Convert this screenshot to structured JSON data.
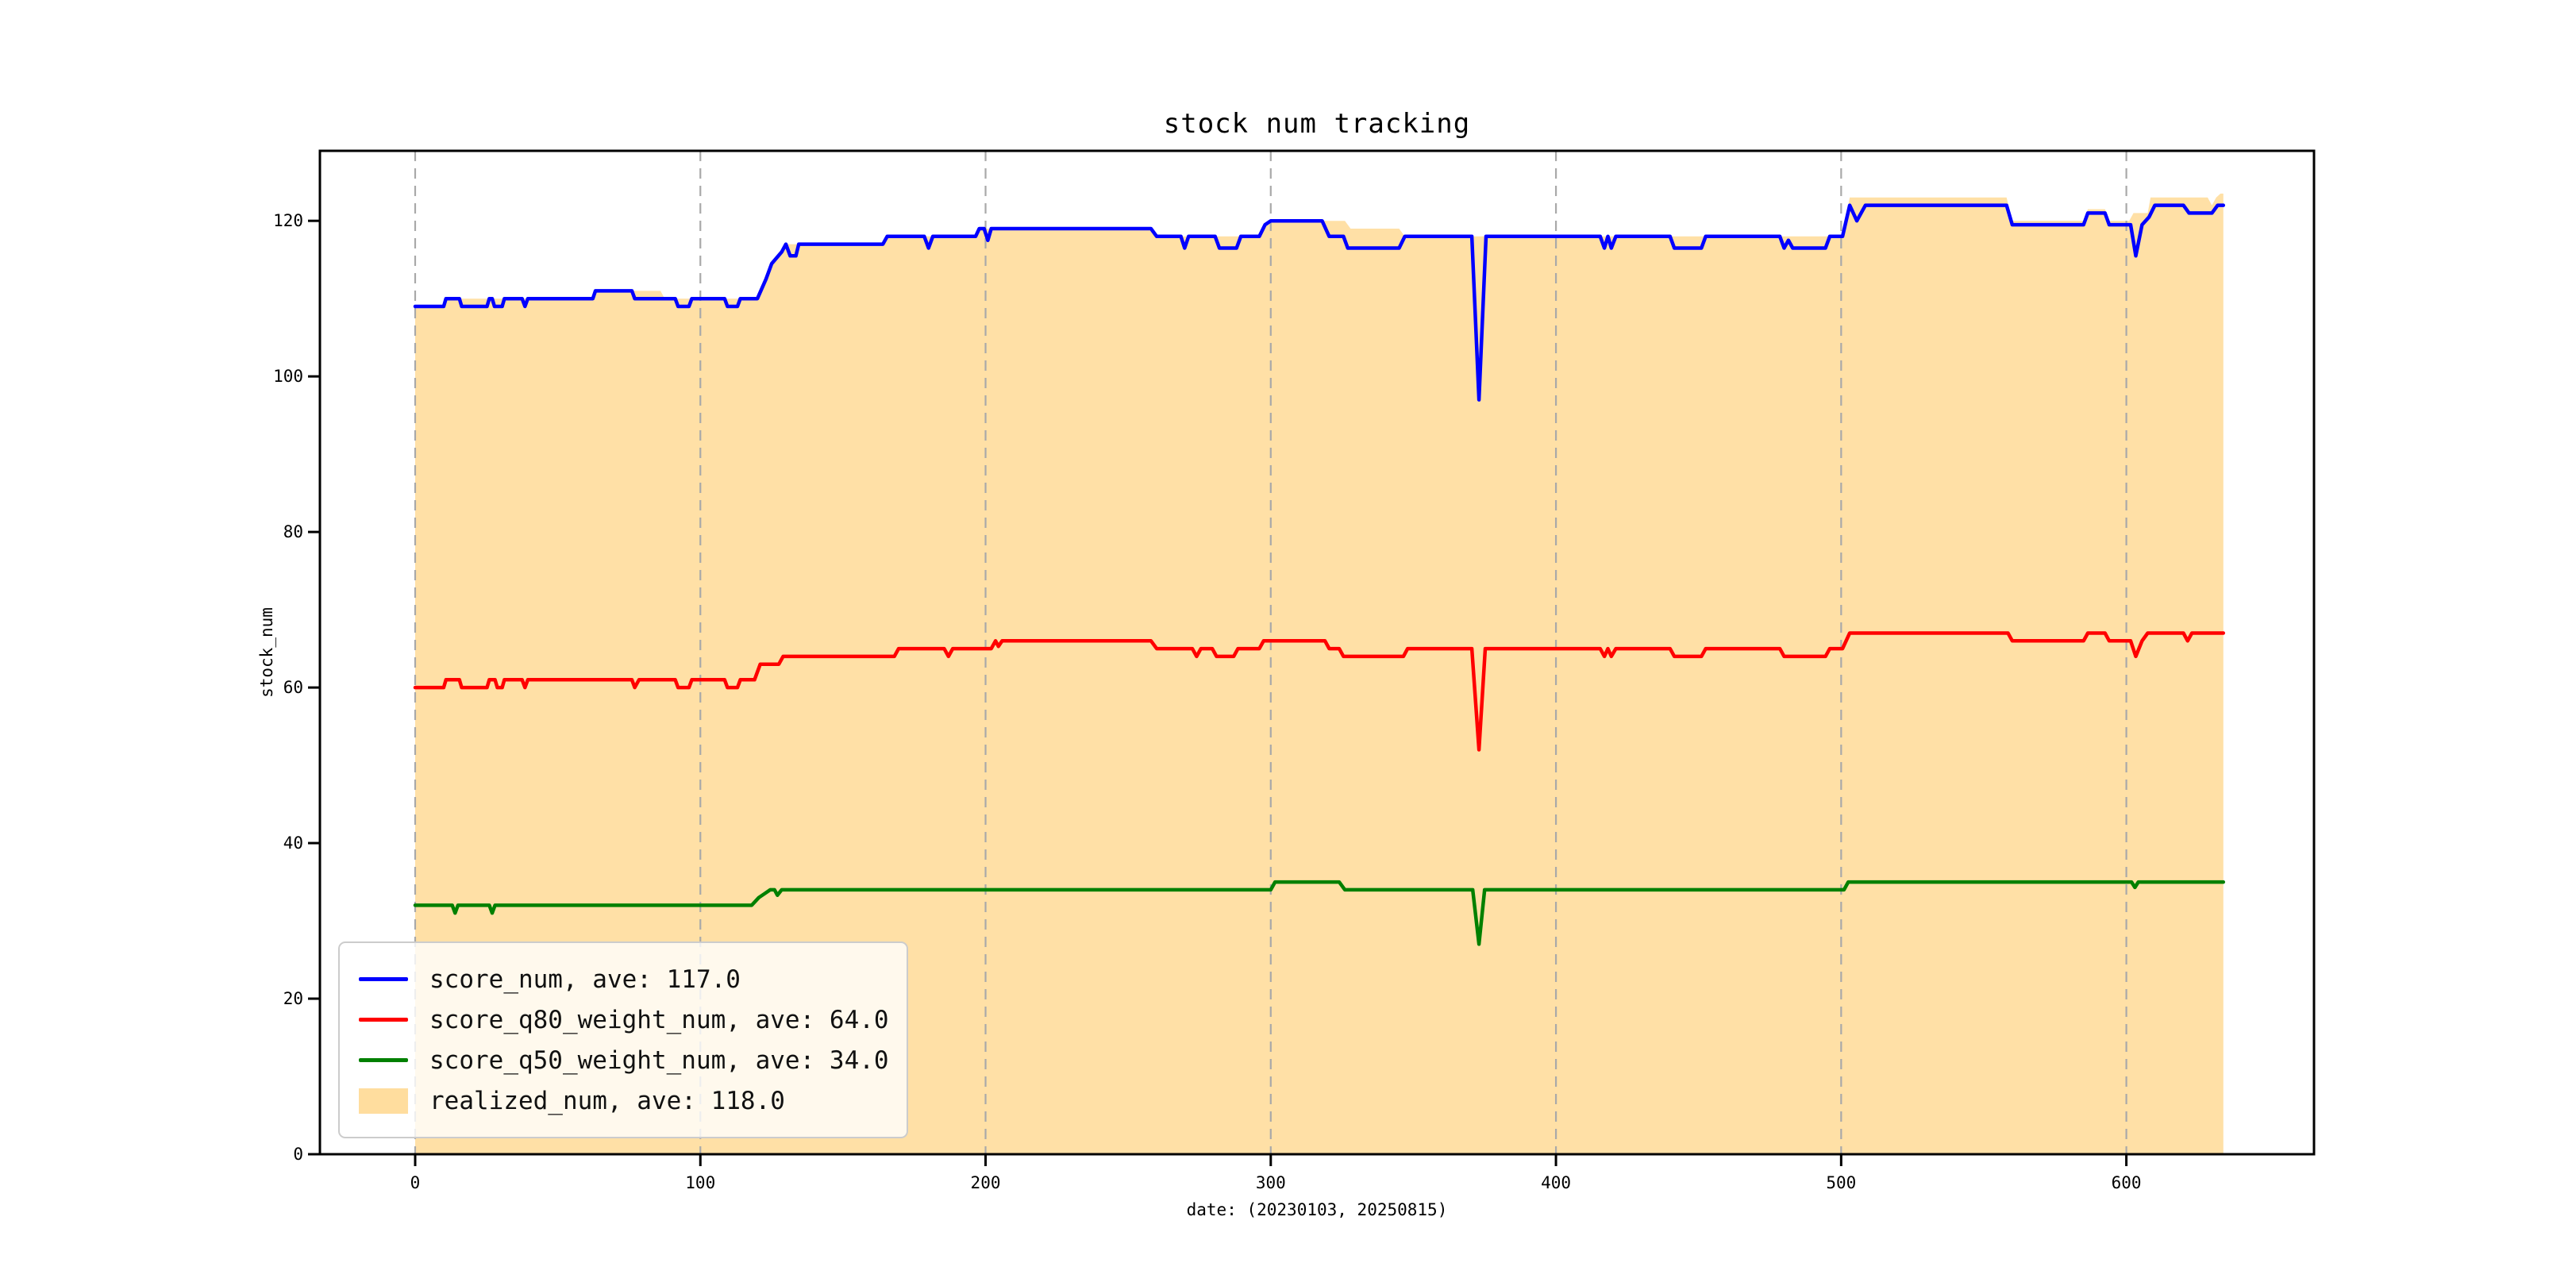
{
  "figure": {
    "title": "stock num tracking",
    "xlabel": "date: (20230103, 20250815)",
    "ylabel": "stock_num",
    "background": "#ffffff"
  },
  "axes": {
    "xlim": [
      -33.4,
      665.8
    ],
    "ylim": [
      0,
      129
    ],
    "x_ticks": [
      0,
      100,
      200,
      300,
      400,
      500,
      600
    ],
    "y_ticks": [
      0,
      20,
      40,
      60,
      80,
      100,
      120
    ],
    "grid_vertical": true,
    "grid_horizontal": false,
    "grid_color": "#a9a9a9",
    "spine_color": "#000000",
    "tick_label_color": "#000000"
  },
  "legend": {
    "position": "lower-left",
    "items": [
      {
        "label": "score_num, ave: 117.0",
        "color": "#0000ff",
        "swatch": "line"
      },
      {
        "label": "score_q80_weight_num, ave: 64.0",
        "color": "#ff0000",
        "swatch": "line"
      },
      {
        "label": "score_q50_weight_num, ave: 34.0",
        "color": "#008000",
        "swatch": "line"
      },
      {
        "label": "realized_num, ave: 118.0",
        "color": "rgba(255,165,0,0.38)",
        "swatch": "patch"
      }
    ]
  },
  "chart_data": {
    "type": "line",
    "title": "stock num tracking",
    "xlabel": "date: (20230103, 20250815)",
    "ylabel": "stock_num",
    "x_range": [
      0,
      634
    ],
    "fill_series": {
      "name": "realized_num",
      "average": 118.0,
      "color": "rgba(255,165,0,0.35)",
      "baseline": 0,
      "points": [
        [
          0,
          109
        ],
        [
          10,
          109
        ],
        [
          10.8,
          110
        ],
        [
          62.3,
          110
        ],
        [
          63.2,
          111
        ],
        [
          86,
          111
        ],
        [
          87.5,
          110
        ],
        [
          120,
          110
        ],
        [
          123,
          112.5
        ],
        [
          125,
          114.5
        ],
        [
          130,
          117
        ],
        [
          134.5,
          117
        ],
        [
          164,
          117
        ],
        [
          165.5,
          118
        ],
        [
          196.5,
          118
        ],
        [
          197.8,
          119
        ],
        [
          258,
          119
        ],
        [
          260,
          118
        ],
        [
          296,
          118
        ],
        [
          298,
          119.5
        ],
        [
          300,
          120
        ],
        [
          326,
          120
        ],
        [
          328,
          119
        ],
        [
          345,
          119
        ],
        [
          347,
          118
        ],
        [
          500.5,
          118
        ],
        [
          503,
          123
        ],
        [
          558,
          123
        ],
        [
          560,
          120
        ],
        [
          585,
          120
        ],
        [
          586.5,
          121.5
        ],
        [
          592.5,
          121.5
        ],
        [
          594,
          120
        ],
        [
          601,
          120
        ],
        [
          602.5,
          121
        ],
        [
          607.5,
          121
        ],
        [
          608.5,
          123
        ],
        [
          628.5,
          123
        ],
        [
          630,
          122
        ],
        [
          631.5,
          123
        ],
        [
          633,
          123.5
        ],
        [
          634,
          123.5
        ]
      ]
    },
    "series": [
      {
        "name": "score_num",
        "average": 117.0,
        "color": "#0000ff",
        "width": 4.5,
        "points": [
          [
            0,
            109
          ],
          [
            10,
            109
          ],
          [
            10.8,
            110
          ],
          [
            15.5,
            110
          ],
          [
            16.3,
            109
          ],
          [
            25.2,
            109
          ],
          [
            26,
            110
          ],
          [
            27,
            110
          ],
          [
            27.8,
            109
          ],
          [
            30.5,
            109
          ],
          [
            31.3,
            110
          ],
          [
            34.5,
            110
          ],
          [
            37.5,
            110
          ],
          [
            38.5,
            109
          ],
          [
            39.5,
            110
          ],
          [
            62.3,
            110
          ],
          [
            63.2,
            111
          ],
          [
            76,
            111
          ],
          [
            77,
            110
          ],
          [
            91.2,
            110
          ],
          [
            92.2,
            109
          ],
          [
            96,
            109
          ],
          [
            97,
            110
          ],
          [
            108.5,
            110
          ],
          [
            109.5,
            109
          ],
          [
            113,
            109
          ],
          [
            114,
            110
          ],
          [
            120,
            110
          ],
          [
            123,
            112.5
          ],
          [
            125,
            114.5
          ],
          [
            128.5,
            116
          ],
          [
            130,
            117
          ],
          [
            131.5,
            115.5
          ],
          [
            133.5,
            115.5
          ],
          [
            134.5,
            117
          ],
          [
            164,
            117
          ],
          [
            165.5,
            118
          ],
          [
            178.5,
            118
          ],
          [
            180,
            116.5
          ],
          [
            181.5,
            118
          ],
          [
            196.5,
            118
          ],
          [
            197.8,
            119
          ],
          [
            199.5,
            119
          ],
          [
            200.8,
            117.5
          ],
          [
            202,
            119
          ],
          [
            258,
            119
          ],
          [
            260,
            118
          ],
          [
            268.5,
            118
          ],
          [
            269.8,
            116.5
          ],
          [
            271.2,
            118
          ],
          [
            280.5,
            118
          ],
          [
            282,
            116.5
          ],
          [
            288,
            116.5
          ],
          [
            289.5,
            118
          ],
          [
            296,
            118
          ],
          [
            298,
            119.5
          ],
          [
            300,
            120
          ],
          [
            318,
            120
          ],
          [
            320.5,
            118
          ],
          [
            325.5,
            118
          ],
          [
            327,
            116.5
          ],
          [
            345,
            116.5
          ],
          [
            347,
            118
          ],
          [
            370.5,
            118
          ],
          [
            373,
            97
          ],
          [
            375.5,
            118
          ],
          [
            415.5,
            118
          ],
          [
            417,
            116.5
          ],
          [
            418.2,
            118
          ],
          [
            419.4,
            116.5
          ],
          [
            421,
            118
          ],
          [
            440,
            118
          ],
          [
            441.5,
            116.5
          ],
          [
            451,
            116.5
          ],
          [
            452.5,
            118
          ],
          [
            478.5,
            118
          ],
          [
            480,
            116.5
          ],
          [
            481.5,
            117.5
          ],
          [
            483,
            116.5
          ],
          [
            494.5,
            116.5
          ],
          [
            496,
            118
          ],
          [
            500.5,
            118
          ],
          [
            503,
            122
          ],
          [
            505.5,
            120
          ],
          [
            508.5,
            122
          ],
          [
            558,
            122
          ],
          [
            560,
            119.5
          ],
          [
            585,
            119.5
          ],
          [
            586.5,
            121
          ],
          [
            592.5,
            121
          ],
          [
            594,
            119.5
          ],
          [
            601.5,
            119.5
          ],
          [
            603.3,
            115.5
          ],
          [
            605.5,
            119.5
          ],
          [
            608,
            120.5
          ],
          [
            610,
            122
          ],
          [
            620,
            122
          ],
          [
            622,
            121
          ],
          [
            630,
            121
          ],
          [
            632,
            122
          ],
          [
            634,
            122
          ]
        ]
      },
      {
        "name": "score_q80_weight_num",
        "average": 64.0,
        "color": "#ff0000",
        "width": 4.5,
        "points": [
          [
            0,
            60
          ],
          [
            10,
            60
          ],
          [
            10.8,
            61
          ],
          [
            15.5,
            61
          ],
          [
            16.3,
            60
          ],
          [
            25.2,
            60
          ],
          [
            26,
            61
          ],
          [
            28,
            61
          ],
          [
            28.8,
            60
          ],
          [
            30.5,
            60
          ],
          [
            31.3,
            61
          ],
          [
            37.5,
            61
          ],
          [
            38.5,
            60
          ],
          [
            39.5,
            61
          ],
          [
            76,
            61
          ],
          [
            77,
            60
          ],
          [
            78.5,
            61
          ],
          [
            91.2,
            61
          ],
          [
            92.2,
            60
          ],
          [
            96,
            60
          ],
          [
            97,
            61
          ],
          [
            108.5,
            61
          ],
          [
            109.5,
            60
          ],
          [
            113,
            60
          ],
          [
            114,
            61
          ],
          [
            119,
            61
          ],
          [
            121,
            63
          ],
          [
            127.5,
            63
          ],
          [
            129,
            64
          ],
          [
            168,
            64
          ],
          [
            169.5,
            65
          ],
          [
            185.5,
            65
          ],
          [
            187,
            64
          ],
          [
            188.5,
            65
          ],
          [
            202,
            65
          ],
          [
            203.5,
            66
          ],
          [
            204.5,
            65.3
          ],
          [
            205.8,
            66
          ],
          [
            258,
            66
          ],
          [
            260,
            65
          ],
          [
            272.5,
            65
          ],
          [
            274,
            64
          ],
          [
            275.5,
            65
          ],
          [
            279.5,
            65
          ],
          [
            281,
            64
          ],
          [
            287,
            64
          ],
          [
            288.5,
            65
          ],
          [
            296,
            65
          ],
          [
            297.5,
            66
          ],
          [
            319,
            66
          ],
          [
            320.5,
            65
          ],
          [
            324,
            65
          ],
          [
            325.5,
            64
          ],
          [
            346.5,
            64
          ],
          [
            348,
            65
          ],
          [
            370.5,
            65
          ],
          [
            373,
            52
          ],
          [
            375.2,
            65
          ],
          [
            415.5,
            65
          ],
          [
            417,
            64
          ],
          [
            418.2,
            65
          ],
          [
            419.4,
            64
          ],
          [
            421,
            65
          ],
          [
            440,
            65
          ],
          [
            441.5,
            64
          ],
          [
            451,
            64
          ],
          [
            452.5,
            65
          ],
          [
            478.5,
            65
          ],
          [
            480,
            64
          ],
          [
            494.5,
            64
          ],
          [
            496,
            65
          ],
          [
            500.5,
            65
          ],
          [
            503,
            67
          ],
          [
            558.5,
            67
          ],
          [
            560,
            66
          ],
          [
            585,
            66
          ],
          [
            586.5,
            67
          ],
          [
            592.5,
            67
          ],
          [
            594,
            66
          ],
          [
            601.5,
            66
          ],
          [
            603.3,
            64
          ],
          [
            605.5,
            66
          ],
          [
            607.5,
            67
          ],
          [
            620,
            67
          ],
          [
            621.5,
            66
          ],
          [
            623,
            67
          ],
          [
            634,
            67
          ]
        ]
      },
      {
        "name": "score_q50_weight_num",
        "average": 34.0,
        "color": "#008000",
        "width": 4.5,
        "points": [
          [
            0,
            32
          ],
          [
            13,
            32
          ],
          [
            14,
            31
          ],
          [
            15,
            32
          ],
          [
            26,
            32
          ],
          [
            27,
            31
          ],
          [
            28,
            32
          ],
          [
            118,
            32
          ],
          [
            120.5,
            33
          ],
          [
            122.5,
            33.5
          ],
          [
            124.5,
            34
          ],
          [
            126,
            34
          ],
          [
            127,
            33.3
          ],
          [
            128.5,
            34
          ],
          [
            300,
            34
          ],
          [
            301.5,
            35
          ],
          [
            324,
            35
          ],
          [
            326,
            34
          ],
          [
            370.8,
            34
          ],
          [
            373,
            27
          ],
          [
            375,
            34
          ],
          [
            501,
            34
          ],
          [
            502.5,
            35
          ],
          [
            601.8,
            35
          ],
          [
            603,
            34.3
          ],
          [
            604.2,
            35
          ],
          [
            634,
            35
          ]
        ]
      }
    ]
  }
}
